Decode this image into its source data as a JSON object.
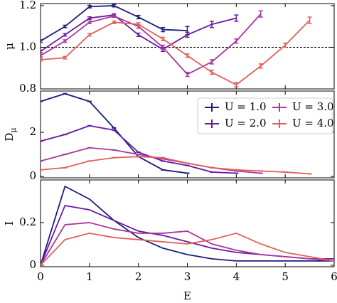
{
  "chart_data": [
    {
      "type": "line",
      "y_label": "μ",
      "x": [
        0,
        0.5,
        1,
        1.5,
        2,
        2.5,
        3,
        3.5,
        4,
        4.5,
        5,
        5.5,
        6
      ],
      "xlim": [
        0,
        6
      ],
      "ylim": [
        0.8,
        1.21
      ],
      "yticks": [
        0.8,
        {
          "value": 1.0,
          "label": "1.0"
        },
        1.2
      ],
      "reference_line": 1.0,
      "series": [
        {
          "color": "#1c1c7c",
          "values": [
            1.03,
            1.1,
            1.195,
            1.2,
            1.145,
            1.085,
            1.08,
            null,
            null,
            null,
            null,
            null,
            null
          ],
          "errors": [
            0.006,
            0.006,
            0.006,
            0.006,
            0.008,
            0.01,
            0.02,
            null,
            null,
            null,
            null,
            null,
            null
          ]
        },
        {
          "color": "#6a1aa0",
          "values": [
            0.98,
            1.06,
            1.14,
            1.155,
            1.06,
            0.99,
            1.06,
            1.11,
            1.14,
            null,
            null,
            null,
            null
          ],
          "errors": [
            0.006,
            0.006,
            0.006,
            0.006,
            0.008,
            0.01,
            0.012,
            0.015,
            0.015,
            null,
            null,
            null,
            null
          ]
        },
        {
          "color": "#a8379c",
          "values": [
            0.96,
            1.03,
            1.12,
            1.15,
            1.1,
            1.0,
            0.87,
            0.93,
            1.03,
            1.16,
            null,
            null,
            null
          ],
          "errors": [
            0.006,
            0.006,
            0.006,
            0.006,
            0.008,
            0.01,
            0.01,
            0.01,
            0.01,
            0.015,
            null,
            null,
            null
          ]
        },
        {
          "color": "#e0605c",
          "values": [
            0.94,
            0.95,
            1.06,
            1.12,
            1.11,
            1.04,
            0.96,
            0.88,
            0.82,
            0.91,
            1.01,
            1.13,
            null
          ],
          "errors": [
            0.006,
            0.006,
            0.006,
            0.006,
            0.008,
            0.008,
            0.008,
            0.01,
            0.01,
            0.01,
            0.01,
            0.015,
            null
          ]
        }
      ]
    },
    {
      "type": "line",
      "y_label": "D",
      "y_label_sub": "μ",
      "x": [
        0,
        0.5,
        1,
        1.5,
        2,
        2.5,
        3,
        3.5,
        4,
        4.5,
        5,
        5.5,
        6
      ],
      "xlim": [
        0,
        6
      ],
      "ylim": [
        -0.06,
        3.87
      ],
      "yticks": [
        0,
        2
      ],
      "legend": "upper right",
      "series": [
        {
          "name": "U = 1.0",
          "color": "#1c1c7c",
          "values": [
            3.4,
            3.75,
            3.4,
            2.2,
            0.9,
            0.3,
            0.15,
            null,
            null,
            null,
            null,
            null,
            null
          ]
        },
        {
          "name": "U = 2.0",
          "color": "#6a1aa0",
          "values": [
            1.6,
            1.9,
            2.3,
            2.1,
            1.1,
            0.7,
            0.5,
            0.2,
            0.15,
            null,
            null,
            null,
            null
          ]
        },
        {
          "name": "U = 3.0",
          "color": "#a8379c",
          "values": [
            0.7,
            1.0,
            1.3,
            1.2,
            1.0,
            0.8,
            0.6,
            0.4,
            0.25,
            0.15,
            null,
            null,
            null
          ]
        },
        {
          "name": "U = 4.0",
          "color": "#e0605c",
          "values": [
            0.3,
            0.4,
            0.7,
            0.85,
            0.9,
            0.85,
            0.6,
            0.4,
            0.3,
            0.25,
            0.2,
            0.12,
            null
          ]
        }
      ]
    },
    {
      "type": "line",
      "y_label": "I",
      "x_label": "E",
      "x": [
        0,
        0.5,
        1,
        1.5,
        2,
        2.5,
        3,
        3.5,
        4,
        4.5,
        5,
        5.5,
        6
      ],
      "xlim": [
        0,
        6
      ],
      "xticks": [
        0,
        1,
        2,
        3,
        4,
        5,
        6
      ],
      "ylim": [
        -0.007,
        0.4
      ],
      "yticks": [
        0,
        0.2
      ],
      "series": [
        {
          "color": "#1c1c7c",
          "values": [
            0,
            0.37,
            0.31,
            0.21,
            0.13,
            0.08,
            0.05,
            0.03,
            0.02,
            0.02,
            0.02,
            0.02,
            0.02
          ]
        },
        {
          "color": "#6a1aa0",
          "values": [
            0,
            0.28,
            0.26,
            0.21,
            0.16,
            0.14,
            0.11,
            0.08,
            0.06,
            0.05,
            0.04,
            0.03,
            0.03
          ]
        },
        {
          "color": "#a8379c",
          "values": [
            0,
            0.19,
            0.2,
            0.17,
            0.15,
            0.15,
            0.16,
            0.1,
            0.07,
            0.05,
            0.04,
            0.03,
            0.02
          ]
        },
        {
          "color": "#e0605c",
          "values": [
            0,
            0.12,
            0.15,
            0.13,
            0.12,
            0.11,
            0.1,
            0.12,
            0.15,
            0.1,
            0.06,
            0.04,
            0.02
          ]
        }
      ]
    }
  ]
}
